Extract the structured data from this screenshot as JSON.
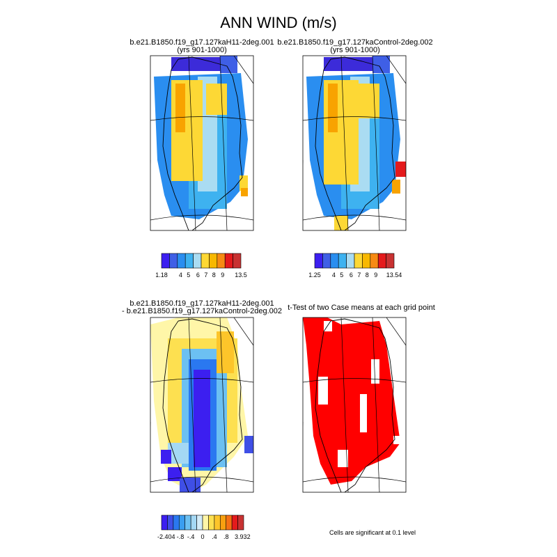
{
  "title": "ANN WIND (m/s)",
  "panels": [
    {
      "title": [
        "b.e21.B1850.f19_g17.127kaH11-2deg.001",
        "(yrs 901-1000)"
      ],
      "colorbar": {
        "colors": [
          "#3c1ff0",
          "#3f5fe6",
          "#2a8ef0",
          "#3eb2f0",
          "#aadcf2",
          "#fdd835",
          "#f8b800",
          "#f78a13",
          "#e41a1c",
          "#c83232"
        ],
        "labels": [
          "1.18",
          "4",
          "5",
          "6",
          "7",
          "8",
          "9",
          "13.5"
        ]
      }
    },
    {
      "title": [
        "b.e21.B1850.f19_g17.127kaControl-2deg.002",
        "(yrs 901-1000)"
      ],
      "colorbar": {
        "colors": [
          "#3c1ff0",
          "#3f5fe6",
          "#2a8ef0",
          "#3eb2f0",
          "#aadcf2",
          "#fdd835",
          "#f8b800",
          "#f78a13",
          "#e41a1c",
          "#c83232"
        ],
        "labels": [
          "1.25",
          "4",
          "5",
          "6",
          "7",
          "8",
          "9",
          "13.54"
        ]
      }
    },
    {
      "title": [
        "b.e21.B1850.f19_g17.127kaH11-2deg.001",
        "- b.e21.B1850.f19_g17.127kaControl-2deg.002"
      ],
      "colorbar": {
        "colors": [
          "#3c1ff0",
          "#3f4fe6",
          "#2a78f0",
          "#3a9ef0",
          "#6cc0f2",
          "#a4d8f4",
          "#d4ecf8",
          "#fff6a8",
          "#fde050",
          "#fdc52a",
          "#f8a010",
          "#f57014",
          "#e41a1c",
          "#c83232"
        ],
        "labels": [
          "-2.404",
          "-.8",
          "-.4",
          "0",
          ".4",
          ".8",
          "3.932"
        ]
      }
    },
    {
      "title": [
        "t-Test of two Case means at each grid point"
      ]
    }
  ],
  "footnote": "Cells are significant at 0.1 level"
}
